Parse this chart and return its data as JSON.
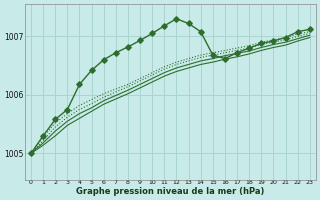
{
  "bg_color": "#c8eae8",
  "grid_color": "#aad4d0",
  "line_color": "#2d6e2d",
  "xlabel": "Graphe pression niveau de la mer (hPa)",
  "xlabel_color": "#1a3a1a",
  "ylabel_ticks": [
    1005,
    1006,
    1007
  ],
  "xlim": [
    -0.5,
    23.5
  ],
  "ylim": [
    1004.55,
    1007.55
  ],
  "hours": [
    0,
    1,
    2,
    3,
    4,
    5,
    6,
    7,
    8,
    9,
    10,
    11,
    12,
    13,
    14,
    15,
    16,
    17,
    18,
    19,
    20,
    21,
    22,
    23
  ],
  "series_spiky": [
    1005.0,
    1005.3,
    1005.58,
    1005.75,
    1006.18,
    1006.42,
    1006.6,
    1006.72,
    1006.82,
    1006.93,
    1007.05,
    1007.18,
    1007.3,
    1007.22,
    1007.08,
    1006.68,
    1006.62,
    1006.72,
    1006.8,
    1006.88,
    1006.92,
    1006.98,
    1007.08,
    1007.12
  ],
  "series_spiky_markers": [
    0,
    1,
    2,
    3,
    4,
    5,
    6,
    7,
    8,
    9,
    10,
    11,
    12,
    13,
    14,
    15,
    16,
    17,
    18,
    19,
    20,
    21,
    22,
    23
  ],
  "series_dotted1": [
    1005.0,
    1005.28,
    1005.52,
    1005.68,
    1005.82,
    1005.92,
    1006.02,
    1006.1,
    1006.18,
    1006.28,
    1006.38,
    1006.48,
    1006.56,
    1006.62,
    1006.68,
    1006.72,
    1006.76,
    1006.8,
    1006.84,
    1006.9,
    1006.94,
    1006.98,
    1007.04,
    1007.08
  ],
  "series_dotted2": [
    1005.0,
    1005.22,
    1005.45,
    1005.62,
    1005.75,
    1005.85,
    1005.96,
    1006.05,
    1006.14,
    1006.24,
    1006.34,
    1006.44,
    1006.52,
    1006.58,
    1006.64,
    1006.68,
    1006.72,
    1006.76,
    1006.8,
    1006.86,
    1006.9,
    1006.94,
    1007.0,
    1007.05
  ],
  "series_linear1": [
    1005.0,
    1005.18,
    1005.38,
    1005.55,
    1005.68,
    1005.78,
    1005.9,
    1005.99,
    1006.08,
    1006.18,
    1006.28,
    1006.38,
    1006.46,
    1006.52,
    1006.58,
    1006.62,
    1006.67,
    1006.71,
    1006.75,
    1006.81,
    1006.86,
    1006.9,
    1006.96,
    1007.02
  ],
  "series_linear2": [
    1005.0,
    1005.14,
    1005.3,
    1005.48,
    1005.6,
    1005.72,
    1005.84,
    1005.93,
    1006.02,
    1006.12,
    1006.22,
    1006.32,
    1006.4,
    1006.46,
    1006.52,
    1006.56,
    1006.61,
    1006.65,
    1006.7,
    1006.76,
    1006.81,
    1006.85,
    1006.92,
    1006.98
  ]
}
